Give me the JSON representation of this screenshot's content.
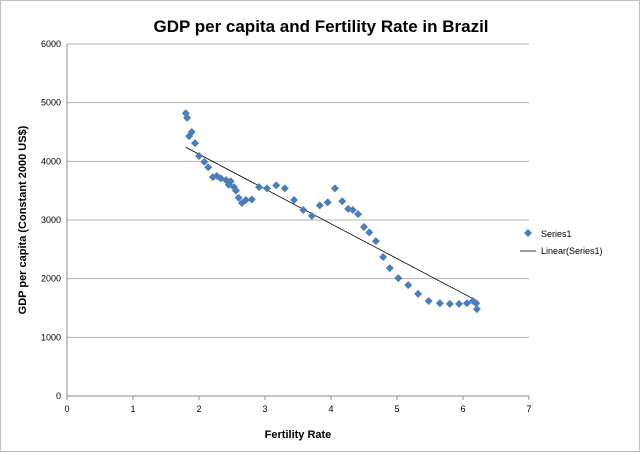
{
  "chart_data": {
    "type": "scatter",
    "title": "GDP per capita and Fertility Rate in Brazil",
    "xlabel": "Fertility Rate",
    "ylabel": "GDP per capita (Constant 2000 US$)",
    "xlim": [
      0,
      7
    ],
    "ylim": [
      0,
      6000
    ],
    "xticks": [
      0,
      1,
      2,
      3,
      4,
      5,
      6,
      7
    ],
    "yticks": [
      0,
      1000,
      2000,
      3000,
      4000,
      5000,
      6000
    ],
    "grid": "horizontal",
    "legend_position": "right",
    "series": [
      {
        "name": "Series1",
        "color": "#4a7ebb",
        "marker": "diamond",
        "points": [
          [
            1.8,
            4820
          ],
          [
            1.82,
            4740
          ],
          [
            1.85,
            4430
          ],
          [
            1.89,
            4500
          ],
          [
            1.94,
            4310
          ],
          [
            2.0,
            4090
          ],
          [
            2.08,
            3990
          ],
          [
            2.14,
            3900
          ],
          [
            2.21,
            3730
          ],
          [
            2.27,
            3750
          ],
          [
            2.33,
            3710
          ],
          [
            2.41,
            3680
          ],
          [
            2.45,
            3600
          ],
          [
            2.48,
            3660
          ],
          [
            2.53,
            3560
          ],
          [
            2.56,
            3500
          ],
          [
            2.6,
            3380
          ],
          [
            2.65,
            3290
          ],
          [
            2.71,
            3340
          ],
          [
            2.8,
            3350
          ],
          [
            2.91,
            3560
          ],
          [
            3.03,
            3540
          ],
          [
            3.17,
            3590
          ],
          [
            3.3,
            3540
          ],
          [
            3.44,
            3340
          ],
          [
            3.58,
            3170
          ],
          [
            3.71,
            3070
          ],
          [
            3.83,
            3250
          ],
          [
            3.95,
            3300
          ],
          [
            4.06,
            3540
          ],
          [
            4.17,
            3320
          ],
          [
            4.26,
            3190
          ],
          [
            4.33,
            3170
          ],
          [
            4.41,
            3100
          ],
          [
            4.5,
            2880
          ],
          [
            4.58,
            2790
          ],
          [
            4.68,
            2640
          ],
          [
            4.79,
            2370
          ],
          [
            4.89,
            2180
          ],
          [
            5.02,
            2010
          ],
          [
            5.17,
            1890
          ],
          [
            5.32,
            1740
          ],
          [
            5.48,
            1620
          ],
          [
            5.65,
            1580
          ],
          [
            5.8,
            1570
          ],
          [
            5.94,
            1570
          ],
          [
            6.06,
            1580
          ],
          [
            6.15,
            1620
          ],
          [
            6.2,
            1580
          ],
          [
            6.21,
            1480
          ]
        ]
      }
    ],
    "trendline": {
      "name": "Linear(Series1)",
      "type": "linear",
      "color": "#000000",
      "slope": -593,
      "intercept": 5307,
      "x_range": [
        1.8,
        6.22
      ]
    }
  }
}
